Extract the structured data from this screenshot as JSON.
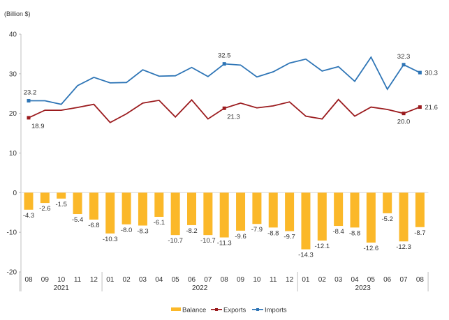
{
  "chart_data": {
    "type": "bar+line",
    "unit_label": "(Billion $)",
    "ylim": [
      -20,
      40
    ],
    "yticks": [
      "40",
      "30",
      "20",
      "10",
      "0",
      "-10",
      "-20"
    ],
    "ytick_values": [
      40,
      30,
      20,
      10,
      0,
      -10,
      -20
    ],
    "categories": [
      "08",
      "09",
      "10",
      "11",
      "12",
      "01",
      "02",
      "03",
      "04",
      "05",
      "06",
      "07",
      "08",
      "09",
      "10",
      "11",
      "12",
      "01",
      "02",
      "03",
      "04",
      "05",
      "06",
      "07",
      "08"
    ],
    "year_groups": [
      {
        "label": "2021",
        "count": 5
      },
      {
        "label": "2022",
        "count": 12
      },
      {
        "label": "2023",
        "count": 8
      }
    ],
    "series": [
      {
        "name": "Balance",
        "type": "bar",
        "color": "#FBB829",
        "values": [
          -4.3,
          -2.6,
          -1.5,
          -5.4,
          -6.8,
          -10.3,
          -8.0,
          -8.3,
          -6.1,
          -10.7,
          -8.2,
          -10.7,
          -11.3,
          -9.6,
          -7.9,
          -8.8,
          -9.7,
          -14.3,
          -12.1,
          -8.4,
          -8.8,
          -12.6,
          -5.2,
          -12.3,
          -8.7
        ],
        "labels": [
          "-4.3",
          "-2.6",
          "-1.5",
          "-5.4",
          "-6.8",
          "-10.3",
          "-8.0",
          "-8.3",
          "-6.1",
          "-10.7",
          "-8.2",
          "-10.7",
          "-11.3",
          "-9.6",
          "-7.9",
          "-8.8",
          "-9.7",
          "-14.3",
          "-12.1",
          "-8.4",
          "-8.8",
          "-12.6",
          "-5.2",
          "-12.3",
          "-8.7"
        ]
      },
      {
        "name": "Exports",
        "type": "line",
        "color": "#9B1B1E",
        "values": [
          18.9,
          20.8,
          20.8,
          21.5,
          22.3,
          17.7,
          19.9,
          22.6,
          23.3,
          19.1,
          23.4,
          18.6,
          21.3,
          22.6,
          21.4,
          21.9,
          22.9,
          19.3,
          18.6,
          23.5,
          19.3,
          21.6,
          21.0,
          20.0,
          21.6
        ],
        "labeled_points": [
          {
            "index": 0,
            "text": "18.9",
            "pos": "below-right"
          },
          {
            "index": 12,
            "text": "21.3",
            "pos": "below-right"
          },
          {
            "index": 23,
            "text": "20.0",
            "pos": "below"
          },
          {
            "index": 24,
            "text": "21.6",
            "pos": "right"
          }
        ]
      },
      {
        "name": "Imports",
        "type": "line",
        "color": "#2E75B6",
        "values": [
          23.2,
          23.2,
          22.3,
          27.0,
          29.1,
          27.7,
          27.8,
          31.0,
          29.4,
          29.5,
          31.6,
          29.3,
          32.5,
          32.2,
          29.2,
          30.5,
          32.7,
          33.7,
          30.7,
          31.8,
          28.1,
          34.2,
          26.1,
          32.3,
          30.3
        ],
        "labeled_points": [
          {
            "index": 0,
            "text": "23.2",
            "pos": "above"
          },
          {
            "index": 12,
            "text": "32.5",
            "pos": "above"
          },
          {
            "index": 23,
            "text": "32.3",
            "pos": "above"
          },
          {
            "index": 24,
            "text": "30.3",
            "pos": "right"
          }
        ]
      }
    ],
    "legend": {
      "position": "bottom",
      "entries": [
        "Balance",
        "Exports",
        "Imports"
      ]
    },
    "grid": false
  }
}
